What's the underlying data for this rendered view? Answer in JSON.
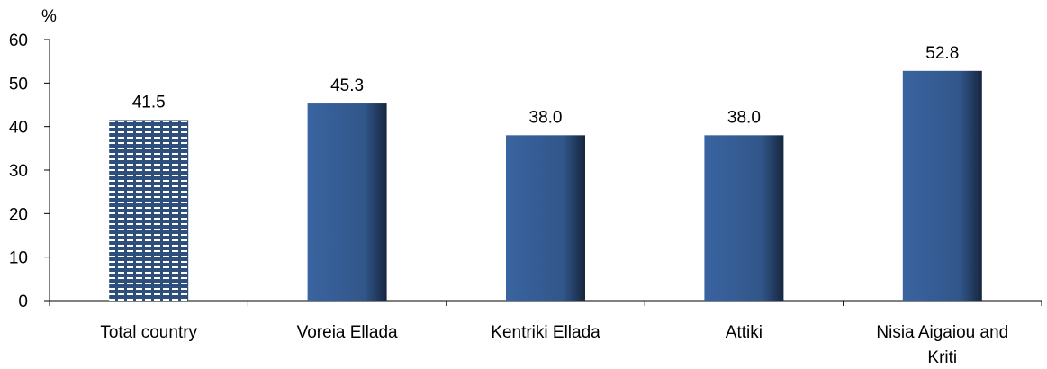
{
  "chart_data": {
    "type": "bar",
    "ylabel": "%",
    "ylim": [
      0,
      60
    ],
    "yticks": [
      "0",
      "10",
      "20",
      "30",
      "40",
      "50",
      "60"
    ],
    "categories": [
      [
        "Total country"
      ],
      [
        "Voreia Ellada"
      ],
      [
        "Kentriki Ellada"
      ],
      [
        "Attiki"
      ],
      [
        "Nisia Aigaiou and",
        "Kriti"
      ]
    ],
    "values": [
      41.5,
      45.3,
      38.0,
      38.0,
      52.8
    ],
    "data_labels": [
      "41.5",
      "45.3",
      "38.0",
      "38.0",
      "52.8"
    ],
    "bar_styles": [
      "pattern",
      "solid",
      "solid",
      "solid",
      "solid"
    ],
    "colors": {
      "bar": "#335A8E",
      "bar_dark": "#1B2F4F",
      "pattern": "#2E4F7C",
      "axis": "#000000"
    },
    "grid": false
  }
}
